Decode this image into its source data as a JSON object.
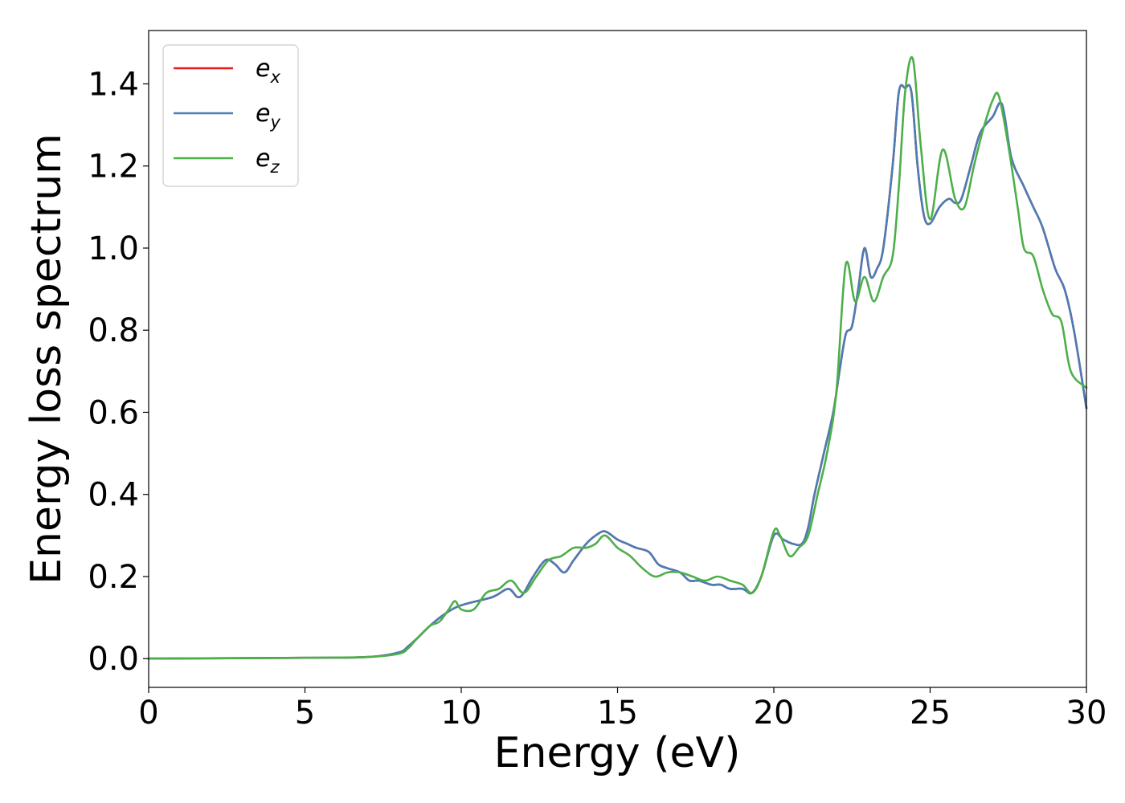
{
  "chart_data": {
    "type": "line",
    "xlabel": "Energy (eV)",
    "ylabel": "Energy loss spectrum",
    "xlim": [
      0,
      30
    ],
    "ylim": [
      -0.07,
      1.53
    ],
    "xticks": [
      0,
      5,
      10,
      15,
      20,
      25,
      30
    ],
    "yticks": [
      0.0,
      0.2,
      0.4,
      0.6,
      0.8,
      1.0,
      1.2,
      1.4
    ],
    "xtick_labels": [
      "0",
      "5",
      "10",
      "15",
      "20",
      "25",
      "30"
    ],
    "ytick_labels": [
      "0.0",
      "0.2",
      "0.4",
      "0.6",
      "0.8",
      "1.0",
      "1.2",
      "1.4"
    ],
    "grid": false,
    "legend_position": "top-left",
    "series": [
      {
        "name": "e_x",
        "base": "e",
        "sub": "x",
        "color": "#e41a1c",
        "x": [
          0,
          5,
          7,
          8,
          8.3,
          8.6,
          9,
          9.5,
          10,
          11,
          11.5,
          11.8,
          12,
          12.3,
          12.7,
          13,
          13.3,
          13.6,
          14,
          14.3,
          14.6,
          15,
          15.3,
          15.6,
          16,
          16.3,
          16.6,
          17,
          17.3,
          17.6,
          18,
          18.3,
          18.6,
          19,
          19.3,
          19.6,
          20,
          20.3,
          20.6,
          20.9,
          21.1,
          21.3,
          21.6,
          21.9,
          22.1,
          22.3,
          22.5,
          22.7,
          22.9,
          23.1,
          23.3,
          23.5,
          23.8,
          24,
          24.2,
          24.4,
          24.6,
          24.8,
          25,
          25.3,
          25.6,
          25.8,
          26,
          26.3,
          26.6,
          27,
          27.3,
          27.6,
          28,
          28.3,
          28.6,
          29,
          29.3,
          29.6,
          30
        ],
        "y": [
          0,
          0.002,
          0.004,
          0.015,
          0.03,
          0.05,
          0.08,
          0.11,
          0.13,
          0.15,
          0.17,
          0.15,
          0.16,
          0.2,
          0.24,
          0.23,
          0.21,
          0.24,
          0.28,
          0.3,
          0.31,
          0.29,
          0.28,
          0.27,
          0.26,
          0.23,
          0.22,
          0.21,
          0.19,
          0.19,
          0.18,
          0.18,
          0.17,
          0.17,
          0.16,
          0.2,
          0.3,
          0.29,
          0.28,
          0.28,
          0.32,
          0.4,
          0.5,
          0.6,
          0.7,
          0.79,
          0.81,
          0.9,
          1.0,
          0.93,
          0.95,
          1.0,
          1.2,
          1.38,
          1.39,
          1.38,
          1.2,
          1.08,
          1.06,
          1.1,
          1.12,
          1.11,
          1.12,
          1.2,
          1.28,
          1.32,
          1.35,
          1.22,
          1.15,
          1.1,
          1.05,
          0.95,
          0.9,
          0.8,
          0.61
        ]
      },
      {
        "name": "e_y",
        "base": "e",
        "sub": "y",
        "color": "#4a7db6",
        "x": [
          0,
          5,
          7,
          8,
          8.3,
          8.6,
          9,
          9.5,
          10,
          11,
          11.5,
          11.8,
          12,
          12.3,
          12.7,
          13,
          13.3,
          13.6,
          14,
          14.3,
          14.6,
          15,
          15.3,
          15.6,
          16,
          16.3,
          16.6,
          17,
          17.3,
          17.6,
          18,
          18.3,
          18.6,
          19,
          19.3,
          19.6,
          20,
          20.3,
          20.6,
          20.9,
          21.1,
          21.3,
          21.6,
          21.9,
          22.1,
          22.3,
          22.5,
          22.7,
          22.9,
          23.1,
          23.3,
          23.5,
          23.8,
          24,
          24.2,
          24.4,
          24.6,
          24.8,
          25,
          25.3,
          25.6,
          25.8,
          26,
          26.3,
          26.6,
          27,
          27.3,
          27.6,
          28,
          28.3,
          28.6,
          29,
          29.3,
          29.6,
          30
        ],
        "y": [
          0,
          0.002,
          0.004,
          0.015,
          0.03,
          0.05,
          0.08,
          0.11,
          0.13,
          0.15,
          0.17,
          0.15,
          0.16,
          0.2,
          0.24,
          0.23,
          0.21,
          0.24,
          0.28,
          0.3,
          0.31,
          0.29,
          0.28,
          0.27,
          0.26,
          0.23,
          0.22,
          0.21,
          0.19,
          0.19,
          0.18,
          0.18,
          0.17,
          0.17,
          0.16,
          0.2,
          0.3,
          0.29,
          0.28,
          0.28,
          0.32,
          0.4,
          0.5,
          0.6,
          0.7,
          0.79,
          0.81,
          0.9,
          1.0,
          0.93,
          0.95,
          1.0,
          1.2,
          1.38,
          1.39,
          1.38,
          1.2,
          1.08,
          1.06,
          1.1,
          1.12,
          1.11,
          1.12,
          1.2,
          1.28,
          1.32,
          1.35,
          1.22,
          1.15,
          1.1,
          1.05,
          0.95,
          0.9,
          0.8,
          0.61
        ]
      },
      {
        "name": "e_z",
        "base": "e",
        "sub": "z",
        "color": "#4daf4a",
        "x": [
          0,
          5,
          7,
          8,
          8.3,
          8.6,
          9,
          9.3,
          9.6,
          9.8,
          10,
          10.4,
          10.8,
          11.2,
          11.6,
          12,
          12.4,
          12.8,
          13.2,
          13.6,
          14,
          14.3,
          14.6,
          15,
          15.4,
          15.8,
          16.2,
          16.6,
          17,
          17.4,
          17.8,
          18.2,
          18.6,
          19,
          19.3,
          19.6,
          20,
          20.2,
          20.5,
          20.8,
          21.1,
          21.4,
          21.7,
          22,
          22.3,
          22.6,
          22.9,
          23.2,
          23.5,
          23.8,
          24,
          24.2,
          24.45,
          24.7,
          25,
          25.4,
          25.8,
          26.1,
          26.4,
          26.7,
          27,
          27.2,
          27.5,
          27.8,
          28,
          28.3,
          28.6,
          28.9,
          29.2,
          29.5,
          30
        ],
        "y": [
          0,
          0.002,
          0.004,
          0.012,
          0.025,
          0.05,
          0.08,
          0.09,
          0.12,
          0.14,
          0.12,
          0.12,
          0.16,
          0.17,
          0.19,
          0.16,
          0.2,
          0.24,
          0.25,
          0.27,
          0.27,
          0.28,
          0.3,
          0.27,
          0.25,
          0.22,
          0.2,
          0.21,
          0.21,
          0.2,
          0.19,
          0.2,
          0.19,
          0.18,
          0.16,
          0.2,
          0.31,
          0.3,
          0.25,
          0.27,
          0.3,
          0.4,
          0.5,
          0.65,
          0.96,
          0.87,
          0.93,
          0.87,
          0.93,
          0.98,
          1.15,
          1.38,
          1.46,
          1.25,
          1.07,
          1.24,
          1.12,
          1.1,
          1.2,
          1.29,
          1.36,
          1.37,
          1.25,
          1.1,
          1.0,
          0.98,
          0.9,
          0.84,
          0.82,
          0.7,
          0.66
        ]
      }
    ]
  }
}
